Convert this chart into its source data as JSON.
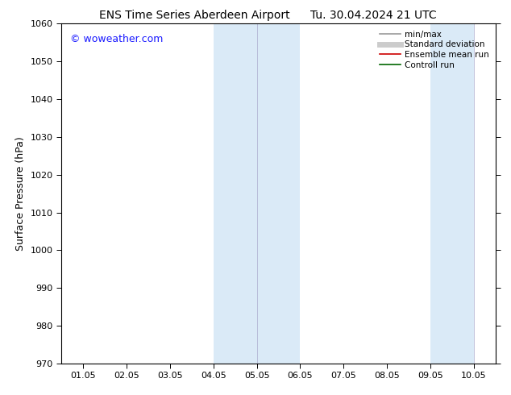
{
  "title_left": "ENS Time Series Aberdeen Airport",
  "title_right": "Tu. 30.04.2024 21 UTC",
  "ylabel": "Surface Pressure (hPa)",
  "ylim": [
    970,
    1060
  ],
  "yticks": [
    970,
    980,
    990,
    1000,
    1010,
    1020,
    1030,
    1040,
    1050,
    1060
  ],
  "xtick_labels": [
    "01.05",
    "02.05",
    "03.05",
    "04.05",
    "05.05",
    "06.05",
    "07.05",
    "08.05",
    "09.05",
    "10.05"
  ],
  "xtick_positions": [
    0,
    1,
    2,
    3,
    4,
    5,
    6,
    7,
    8,
    9
  ],
  "xlim": [
    -0.5,
    9.5
  ],
  "shade_bands": [
    {
      "xmin": 3.0,
      "xmax": 4.0
    },
    {
      "xmin": 4.0,
      "xmax": 5.0
    },
    {
      "xmin": 8.0,
      "xmax": 9.0
    }
  ],
  "shade_color": "#daeaf7",
  "divider_lines": [
    4.0,
    9.0
  ],
  "watermark": "© woweather.com",
  "watermark_color": "#1a1aff",
  "legend_entries": [
    {
      "label": "min/max",
      "color": "#999999",
      "lw": 1.2,
      "style": "line"
    },
    {
      "label": "Standard deviation",
      "color": "#cccccc",
      "lw": 5,
      "style": "line"
    },
    {
      "label": "Ensemble mean run",
      "color": "#cc0000",
      "lw": 1.2,
      "style": "line"
    },
    {
      "label": "Controll run",
      "color": "#006600",
      "lw": 1.2,
      "style": "line"
    }
  ],
  "bg_color": "#ffffff",
  "title_fontsize": 10,
  "ylabel_fontsize": 9,
  "tick_fontsize": 8,
  "legend_fontsize": 7.5,
  "watermark_fontsize": 9
}
